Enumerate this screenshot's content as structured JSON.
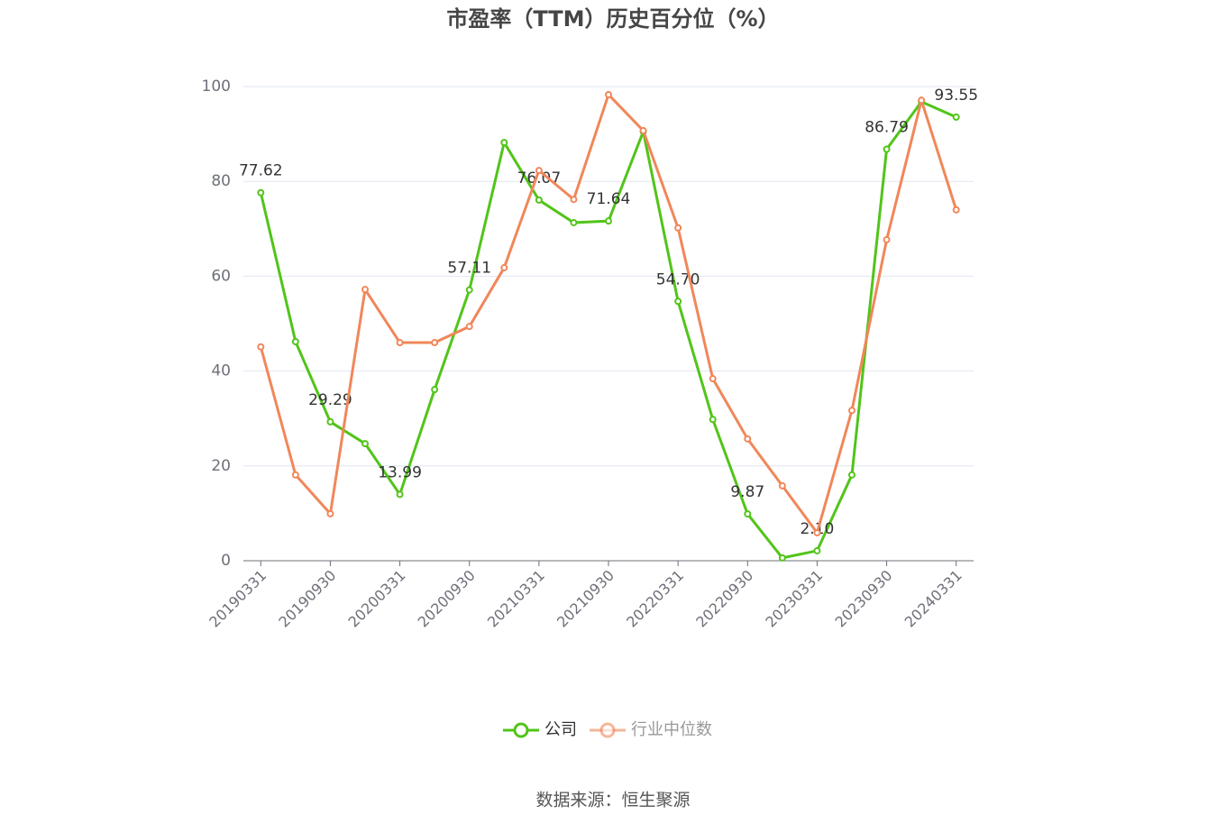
{
  "chart_data": {
    "type": "line",
    "title": "市盈率（TTM）历史百分位（%）",
    "categories": [
      "20190331",
      null,
      "20190930",
      null,
      "20200331",
      null,
      "20200930",
      null,
      "20210331",
      null,
      "20210930",
      null,
      "20220331",
      null,
      "20220930",
      null,
      "20230331",
      null,
      "20230930",
      null,
      "20240331"
    ],
    "series": [
      {
        "name": "公司",
        "color": "#52c41a",
        "values": [
          77.62,
          46.2,
          29.29,
          24.7,
          13.99,
          36.1,
          57.11,
          88.2,
          76.07,
          71.3,
          71.64,
          90.5,
          54.7,
          29.8,
          9.87,
          0.6,
          2.1,
          18.1,
          86.79,
          96.8,
          93.55
        ],
        "value_labels": [
          "77.62",
          null,
          "29.29",
          null,
          "13.99",
          null,
          "57.11",
          null,
          "76.07",
          null,
          "71.64",
          null,
          "54.70",
          null,
          "9.87",
          null,
          "2.10",
          null,
          "86.79",
          null,
          "93.55"
        ]
      },
      {
        "name": "行业中位数",
        "color": "#f0875a",
        "values": [
          45.1,
          18.1,
          9.9,
          57.2,
          46.0,
          46.0,
          49.4,
          61.8,
          82.3,
          76.2,
          98.3,
          90.7,
          70.2,
          38.4,
          25.7,
          15.8,
          5.9,
          31.7,
          67.7,
          97.1,
          74.0
        ]
      }
    ],
    "ylim": [
      0,
      100
    ],
    "yticks": [
      0,
      20,
      40,
      60,
      80,
      100
    ],
    "grid": true,
    "legend": "bottom",
    "source": "数据来源：恒生聚源"
  }
}
